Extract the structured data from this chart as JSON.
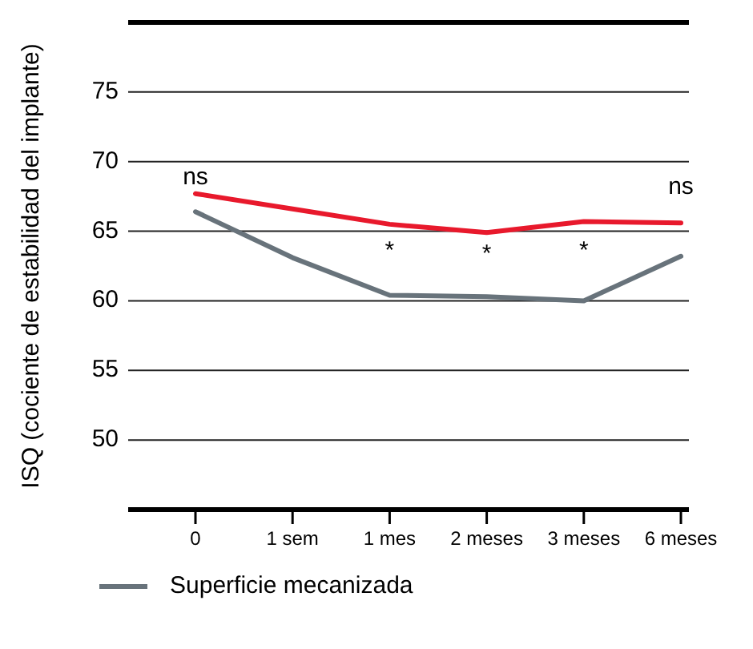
{
  "chart_data": {
    "type": "line",
    "ylabel": "ISQ (cociente de estabilidad del implante)",
    "categories": [
      "0",
      "1 sem",
      "1 mes",
      "2 meses",
      "3 meses",
      "6 meses"
    ],
    "series": [
      {
        "color": "#e8192c",
        "values": [
          67.7,
          66.6,
          65.5,
          64.9,
          65.7,
          65.6
        ]
      },
      {
        "name": "Superficie mecanizada",
        "color": "#68737b",
        "values": [
          66.4,
          63.1,
          60.4,
          60.3,
          60.0,
          63.2
        ]
      }
    ],
    "ylim": [
      45,
      80
    ],
    "yticks": [
      50,
      55,
      60,
      65,
      70,
      75
    ],
    "grid": "y",
    "legend": "bottom left",
    "marker": "none",
    "line_style": "solid",
    "annotations": [
      "ns",
      "*",
      "*",
      "*",
      "ns"
    ]
  }
}
